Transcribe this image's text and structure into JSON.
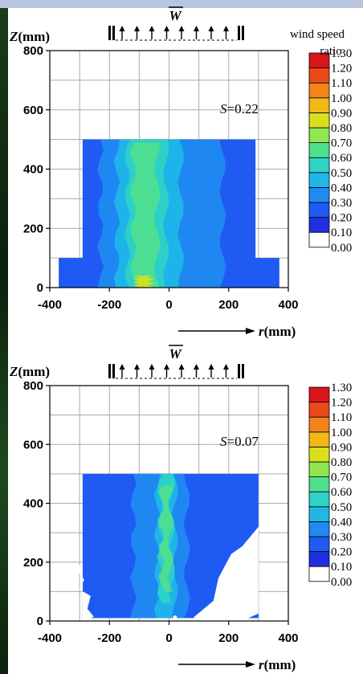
{
  "chart_data": [
    {
      "type": "heatmap",
      "annotation_var": "S",
      "annotation_val": "=0.22",
      "inflow_symbol": "W",
      "ylabel_var": "Z",
      "ylabel_unit": "(mm)",
      "xlabel_var": "r",
      "xlabel_unit": "(mm)",
      "colorbar_title": "wind speed ratio",
      "xlim": [
        -400,
        400
      ],
      "ylim": [
        0,
        800
      ],
      "x_ticks": [
        "-400",
        "-200",
        "0",
        "200",
        "400"
      ],
      "y_ticks": [
        "0",
        "200",
        "400",
        "600",
        "800"
      ],
      "colorbar_levels": [
        "0.00",
        "0.10",
        "0.20",
        "0.30",
        "0.40",
        "0.50",
        "0.60",
        "0.70",
        "0.80",
        "0.90",
        "1.00",
        "1.10",
        "1.20",
        "1.30"
      ],
      "grid": true,
      "region_outline": [
        [
          -290,
          0
        ],
        [
          -290,
          100
        ],
        [
          -370,
          100
        ],
        [
          -370,
          0
        ],
        [
          -370,
          0
        ],
        [
          370,
          0
        ],
        [
          370,
          100
        ],
        [
          290,
          100
        ],
        [
          290,
          500
        ],
        [
          -290,
          500
        ],
        [
          -290,
          100
        ]
      ],
      "contour_bands": [
        {
          "level": 0.2,
          "x": [
            -290,
            290
          ],
          "z": [
            0,
            500
          ]
        },
        {
          "level": 0.3,
          "x": [
            -230,
            180
          ],
          "z": [
            0,
            500
          ]
        },
        {
          "level": 0.4,
          "x": [
            -175,
            40
          ],
          "z": [
            0,
            500
          ]
        },
        {
          "level": 0.5,
          "x": [
            -140,
            -10
          ],
          "z": [
            0,
            500
          ]
        },
        {
          "level": 0.6,
          "x": [
            -120,
            -40
          ],
          "z": [
            0,
            490
          ]
        },
        {
          "level": 0.8,
          "x": [
            -110,
            -60
          ],
          "z": [
            0,
            40
          ]
        }
      ]
    },
    {
      "type": "heatmap",
      "annotation_var": "S",
      "annotation_val": "=0.07",
      "inflow_symbol": "W",
      "ylabel_var": "Z",
      "ylabel_unit": "(mm)",
      "xlabel_var": "r",
      "xlabel_unit": "(mm)",
      "colorbar_title": "",
      "xlim": [
        -400,
        400
      ],
      "ylim": [
        0,
        800
      ],
      "x_ticks": [
        "-400",
        "-200",
        "0",
        "200",
        "400"
      ],
      "y_ticks": [
        "0",
        "200",
        "400",
        "600",
        "800"
      ],
      "colorbar_levels": [
        "0.00",
        "0.10",
        "0.20",
        "0.30",
        "0.40",
        "0.50",
        "0.60",
        "0.70",
        "0.80",
        "0.90",
        "1.00",
        "1.10",
        "1.20",
        "1.30"
      ],
      "grid": true,
      "region_outline": [
        [
          -290,
          10
        ],
        [
          -290,
          500
        ],
        [
          300,
          500
        ],
        [
          300,
          10
        ]
      ],
      "contour_bands": [
        {
          "level": 0.2,
          "x": [
            -290,
            300
          ],
          "z": [
            10,
            500
          ]
        },
        {
          "level": 0.3,
          "x": [
            -120,
            60
          ],
          "z": [
            10,
            500
          ]
        },
        {
          "level": 0.4,
          "x": [
            -40,
            20
          ],
          "z": [
            10,
            500
          ]
        },
        {
          "level": 0.5,
          "x": [
            -30,
            10
          ],
          "z": [
            60,
            500
          ]
        },
        {
          "level": 0.6,
          "x": [
            -25,
            5
          ],
          "z": [
            100,
            460
          ]
        }
      ]
    }
  ],
  "colors": {
    "scale": [
      "#ffffff",
      "#1f2ee0",
      "#1f5bf2",
      "#1f8bf2",
      "#20b7e8",
      "#2fd3c6",
      "#4fe08f",
      "#8fe64f",
      "#d8e01c",
      "#f2b818",
      "#f2841a",
      "#ea4a1a",
      "#d8161a"
    ]
  }
}
